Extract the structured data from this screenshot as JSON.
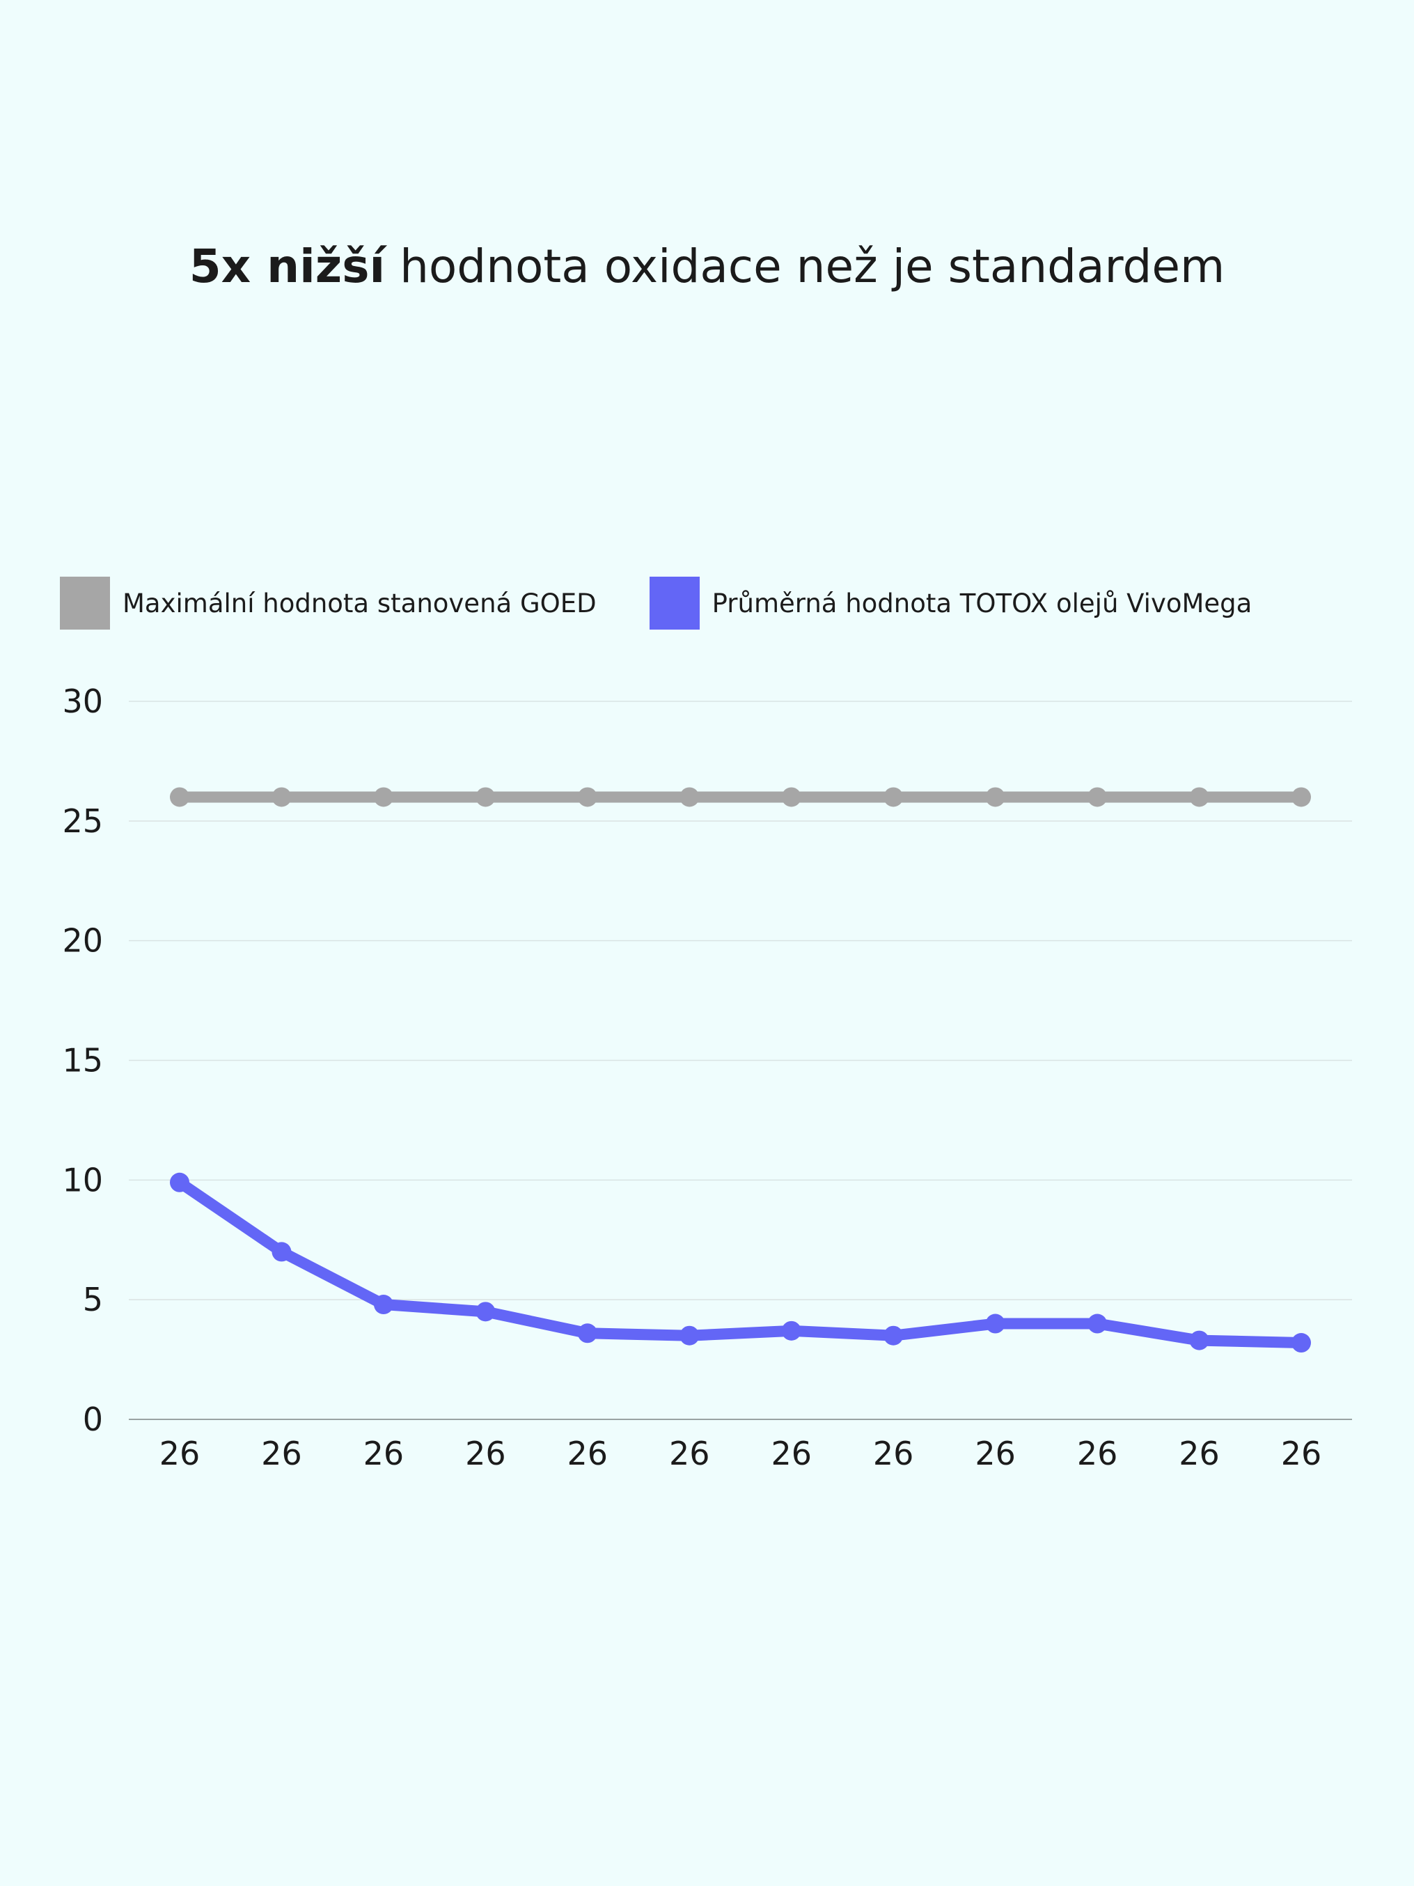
{
  "title": {
    "bold": "5x nižší",
    "rest": " hodnota oxidace než je standardem"
  },
  "colors": {
    "background": "#effdfd",
    "goed": "#a6a6a6",
    "vivomega": "#6366f6",
    "grid": "#d9e3e3",
    "axis": "#9aa3a3"
  },
  "chart_data": {
    "type": "line",
    "title": "5x nižší hodnota oxidace než je standardem",
    "categories": [
      "26",
      "26",
      "26",
      "26",
      "26",
      "26",
      "26",
      "26",
      "26",
      "26",
      "26",
      "26"
    ],
    "series": [
      {
        "name": "Maximální hodnota stanovená GOED",
        "color": "#a6a6a6",
        "values": [
          26,
          26,
          26,
          26,
          26,
          26,
          26,
          26,
          26,
          26,
          26,
          26
        ]
      },
      {
        "name": "Průměrná hodnota TOTOX olejů VivoMega",
        "color": "#6366f6",
        "values": [
          9.9,
          7.0,
          4.8,
          4.5,
          3.6,
          3.5,
          3.7,
          3.5,
          4.0,
          4.0,
          3.3,
          3.2
        ]
      }
    ],
    "yticks": [
      0,
      5,
      10,
      15,
      20,
      25,
      30
    ],
    "ylim": [
      0,
      30
    ],
    "xlabel": "",
    "ylabel": "",
    "grid": true,
    "legend": "top-left"
  }
}
